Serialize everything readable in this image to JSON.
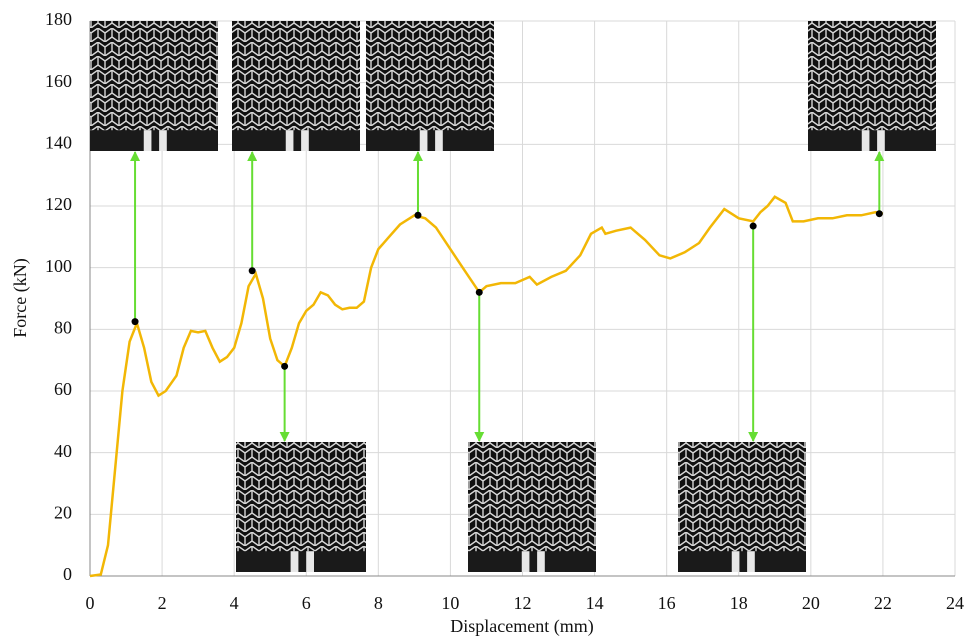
{
  "chart_data": {
    "type": "line",
    "ylabel": "Force (kN)",
    "xlabel": "Displacement (mm)",
    "xlim": [
      0,
      24
    ],
    "xticks": [
      0,
      2,
      4,
      6,
      8,
      10,
      12,
      14,
      16,
      18,
      20,
      22,
      24
    ],
    "ylim": [
      0,
      180
    ],
    "yticks": [
      0,
      20,
      40,
      60,
      80,
      100,
      120,
      140,
      160,
      180
    ],
    "grid": true,
    "color": "#f2b705",
    "x": [
      0,
      0.3,
      0.5,
      0.7,
      0.9,
      1.1,
      1.3,
      1.5,
      1.7,
      1.9,
      2.1,
      2.4,
      2.6,
      2.8,
      3.0,
      3.2,
      3.4,
      3.6,
      3.8,
      4.0,
      4.2,
      4.4,
      4.6,
      4.8,
      5.0,
      5.2,
      5.4,
      5.6,
      5.8,
      6.0,
      6.2,
      6.4,
      6.6,
      6.8,
      7.0,
      7.2,
      7.4,
      7.6,
      7.8,
      8.0,
      8.3,
      8.6,
      9.0,
      9.3,
      9.6,
      10.0,
      10.4,
      10.8,
      11.0,
      11.4,
      11.8,
      12.2,
      12.4,
      12.8,
      13.2,
      13.6,
      13.9,
      14.2,
      14.3,
      14.6,
      15.0,
      15.4,
      15.8,
      16.1,
      16.5,
      16.9,
      17.2,
      17.6,
      18.0,
      18.4,
      18.6,
      18.8,
      19.0,
      19.3,
      19.5,
      19.8,
      20.2,
      20.6,
      21.0,
      21.4,
      21.8,
      22.0
    ],
    "values": [
      0,
      0.5,
      10,
      35,
      60,
      76,
      82,
      74,
      63,
      58.5,
      60,
      65,
      74,
      79.5,
      79,
      79.5,
      74,
      69.5,
      71,
      74,
      82,
      94,
      98,
      90,
      77,
      70,
      68,
      74,
      82,
      86,
      88,
      92,
      91,
      88,
      86.5,
      87,
      87,
      89,
      100,
      106,
      110,
      114,
      117,
      116,
      113,
      106,
      99,
      92,
      94,
      95,
      95,
      97,
      94.5,
      97,
      99,
      104,
      111,
      113,
      111,
      112,
      113,
      109,
      104,
      103,
      105,
      108,
      113,
      119,
      116,
      115,
      118,
      120,
      123,
      121,
      115,
      115,
      116,
      116,
      117,
      117,
      118,
      117.5
    ],
    "marker_color": "#000000",
    "points_x": [
      1.25,
      4.5,
      5.4,
      9.1,
      10.8,
      18.4,
      21.9
    ],
    "points_y": [
      82.5,
      99,
      68,
      117,
      92,
      113.5,
      117.5
    ],
    "arrow_color": "#66dd33"
  }
}
